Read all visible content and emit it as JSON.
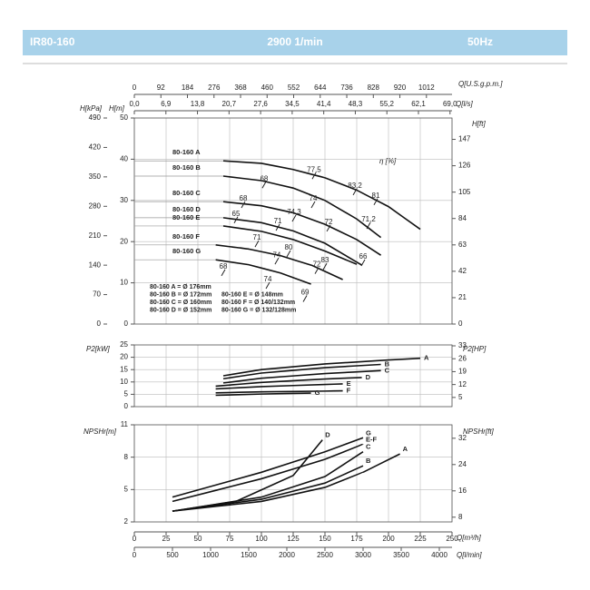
{
  "header": {
    "model": "IR80-160",
    "speed": "2900 1/min",
    "frequency": "50Hz"
  },
  "chart_data": [
    {
      "type": "line",
      "ylabel": "H[m]",
      "ylabel_kpa": "H[kPa]",
      "y2label": "H[ft]",
      "xlabel_top": "Q[U.S.g.p.m.]",
      "xlabel_top2": "Q[l/s]",
      "efficiency_label": "η [%]",
      "xlim": [
        0,
        250
      ],
      "ylim": [
        0,
        50
      ],
      "yticks": [
        0,
        10,
        20,
        30,
        40,
        50
      ],
      "ylim_kpa": [
        0,
        490
      ],
      "yticks_kpa": [
        0,
        70,
        140,
        210,
        280,
        350,
        420,
        490
      ],
      "y2lim": [
        0,
        164
      ],
      "y2ticks": [
        0,
        21,
        42,
        63,
        84,
        105,
        126,
        147
      ],
      "x_top_lim": [
        0,
        1100.7
      ],
      "x_top_ticks": [
        0,
        92,
        184,
        276,
        368,
        460,
        552,
        644,
        736,
        828,
        920,
        1012
      ],
      "x_top2_lim": [
        0,
        69.44
      ],
      "x_top2_ticks": [
        {
          "value": 0,
          "label": "0,0"
        },
        {
          "value": 6.9,
          "label": "6,9"
        },
        {
          "value": 13.8,
          "label": "13,8"
        },
        {
          "value": 20.7,
          "label": "20,7"
        },
        {
          "value": 27.6,
          "label": "27,6"
        },
        {
          "value": 34.5,
          "label": "34,5"
        },
        {
          "value": 41.4,
          "label": "41,4"
        },
        {
          "value": 48.3,
          "label": "48,3"
        },
        {
          "value": 55.2,
          "label": "55,2"
        },
        {
          "value": 62.1,
          "label": "62,1"
        },
        {
          "value": 69.0,
          "label": "69,0"
        }
      ],
      "grid": true,
      "series": [
        {
          "name": "80-160 A",
          "color": "#111111",
          "x": [
            70,
            100,
            125,
            150,
            175,
            200,
            225
          ],
          "values": [
            39.6,
            39,
            37.5,
            35.5,
            32.5,
            28.5,
            23
          ]
        },
        {
          "name": "80-160 B",
          "color": "#111111",
          "x": [
            70,
            100,
            125,
            150,
            175,
            194
          ],
          "values": [
            35.9,
            34.8,
            33,
            30,
            25.5,
            21
          ]
        },
        {
          "name": "80-160 C",
          "color": "#111111",
          "x": [
            70,
            100,
            125,
            150,
            175,
            194
          ],
          "values": [
            29.7,
            28.7,
            27,
            24.2,
            20.5,
            16.7
          ]
        },
        {
          "name": "80-160 D",
          "color": "#111111",
          "x": [
            70,
            100,
            125,
            150,
            179
          ],
          "values": [
            25.8,
            24.6,
            22.6,
            19.6,
            14.3
          ]
        },
        {
          "name": "80-160 E",
          "color": "#111111",
          "x": [
            70,
            100,
            125,
            150,
            175
          ],
          "values": [
            23.8,
            22.5,
            20.5,
            17.7,
            14.5
          ]
        },
        {
          "name": "80-160 F",
          "color": "#111111",
          "x": [
            64,
            90,
            115,
            140,
            164
          ],
          "values": [
            19.2,
            18.2,
            16.6,
            14.2,
            10.8
          ]
        },
        {
          "name": "80-160 G",
          "color": "#111111",
          "x": [
            64,
            90,
            115,
            139
          ],
          "values": [
            15.6,
            14.4,
            12.4,
            9.7
          ]
        }
      ],
      "efficiency_marks": [
        {
          "label": "68",
          "x": 102.1,
          "y": 35.2
        },
        {
          "label": "77,5",
          "x": 141.4,
          "y": 37.4
        },
        {
          "label": "83,2",
          "x": 173.6,
          "y": 33.5
        },
        {
          "label": "81",
          "x": 190,
          "y": 31.1
        },
        {
          "label": "68",
          "x": 85.7,
          "y": 30.4
        },
        {
          "label": "74",
          "x": 140.7,
          "y": 30.4
        },
        {
          "label": "74,3",
          "x": 125.7,
          "y": 27.1
        },
        {
          "label": "65",
          "x": 80,
          "y": 26.7
        },
        {
          "label": "71",
          "x": 112.9,
          "y": 24.9
        },
        {
          "label": "72",
          "x": 152.9,
          "y": 24.7
        },
        {
          "label": "71,2",
          "x": 184.3,
          "y": 25.3
        },
        {
          "label": "71",
          "x": 96.4,
          "y": 20.9
        },
        {
          "label": "80",
          "x": 121.4,
          "y": 18.5
        },
        {
          "label": "74",
          "x": 112.1,
          "y": 16.7
        },
        {
          "label": "83",
          "x": 150,
          "y": 15.4
        },
        {
          "label": "66",
          "x": 180,
          "y": 16.3
        },
        {
          "label": "68",
          "x": 70,
          "y": 13.9
        },
        {
          "label": "72",
          "x": 143.6,
          "y": 14.4
        },
        {
          "label": "74",
          "x": 105,
          "y": 10.8
        },
        {
          "label": "69",
          "x": 134.3,
          "y": 7.6
        }
      ],
      "diameters": [
        "80-160 A = Ø 176mm",
        "80-160 B = Ø 172mm",
        "80-160 C = Ø 160mm",
        "80-160 D = Ø 152mm",
        "80-160 E = Ø 148mm",
        "80-160 F = Ø 140/132mm",
        "80-160 G = Ø 132/128mm"
      ]
    },
    {
      "type": "line",
      "ylabel": "P2[kW]",
      "y2label": "P2[HP]",
      "xlim": [
        0,
        250
      ],
      "ylim": [
        0,
        25
      ],
      "yticks": [
        0,
        5,
        10,
        15,
        20,
        25
      ],
      "y2lim": [
        0,
        33.5
      ],
      "y2ticks": [
        5,
        12,
        19,
        26,
        33
      ],
      "grid": true,
      "series": [
        {
          "name": "A",
          "color": "#111111",
          "x": [
            70,
            100,
            150,
            200,
            225
          ],
          "values": [
            12.5,
            15,
            17.3,
            18.9,
            19.6
          ]
        },
        {
          "name": "B",
          "color": "#111111",
          "x": [
            70,
            100,
            150,
            194
          ],
          "values": [
            11.3,
            13.6,
            15.8,
            17.1
          ]
        },
        {
          "name": "C",
          "color": "#111111",
          "x": [
            70,
            100,
            150,
            194
          ],
          "values": [
            9.6,
            11.5,
            13.4,
            14.6
          ]
        },
        {
          "name": "D",
          "color": "#111111",
          "x": [
            64,
            100,
            150,
            179
          ],
          "values": [
            8.3,
            9.8,
            11.2,
            11.8
          ]
        },
        {
          "name": "E",
          "color": "#111111",
          "x": [
            64,
            100,
            150,
            164
          ],
          "values": [
            7.2,
            8.1,
            9,
            9.2
          ]
        },
        {
          "name": "F",
          "color": "#111111",
          "x": [
            64,
            100,
            150,
            164
          ],
          "values": [
            5.6,
            6,
            6.3,
            6.4
          ]
        },
        {
          "name": "G",
          "color": "#111111",
          "x": [
            64,
            100,
            139
          ],
          "values": [
            4.6,
            5.1,
            5.5
          ]
        }
      ]
    },
    {
      "type": "line",
      "ylabel": "NPSHr[m]",
      "y2label": "NPSHr[ft]",
      "xlabel": "Q[m³/h]",
      "xlabel2": "Q[l/min]",
      "xlim": [
        0,
        250
      ],
      "xticks": [
        0,
        25,
        50,
        75,
        100,
        125,
        150,
        175,
        200,
        225,
        250
      ],
      "x2lim": [
        0,
        4166.7
      ],
      "x2ticks": [
        0,
        500,
        1000,
        1500,
        2000,
        2500,
        3000,
        3500,
        4000
      ],
      "ylim": [
        2,
        11
      ],
      "yticks": [
        2,
        5,
        8,
        11
      ],
      "y2lim": [
        6.56,
        36.09
      ],
      "y2ticks": [
        8,
        16,
        24,
        32
      ],
      "grid": true,
      "series": [
        {
          "name": "A",
          "color": "#111111",
          "x": [
            30,
            100,
            150,
            180,
            209
          ],
          "values": [
            3,
            3.9,
            5.2,
            6.6,
            8.3
          ]
        },
        {
          "name": "B",
          "color": "#111111",
          "x": [
            30,
            100,
            150,
            180
          ],
          "values": [
            3,
            4.1,
            5.6,
            7.2
          ]
        },
        {
          "name": "C",
          "color": "#111111",
          "x": [
            30,
            100,
            150,
            180
          ],
          "values": [
            3,
            4.3,
            6.2,
            8.5
          ]
        },
        {
          "name": "D",
          "color": "#111111",
          "x": [
            30,
            80,
            125,
            148
          ],
          "values": [
            3,
            3.9,
            6.3,
            9.6
          ]
        },
        {
          "name": "E-F",
          "color": "#111111",
          "x": [
            30,
            100,
            150,
            180
          ],
          "values": [
            3.9,
            6,
            7.8,
            9.2
          ]
        },
        {
          "name": "G",
          "color": "#111111",
          "x": [
            30,
            100,
            150,
            180
          ],
          "values": [
            4.3,
            6.6,
            8.5,
            9.8
          ]
        }
      ]
    }
  ]
}
